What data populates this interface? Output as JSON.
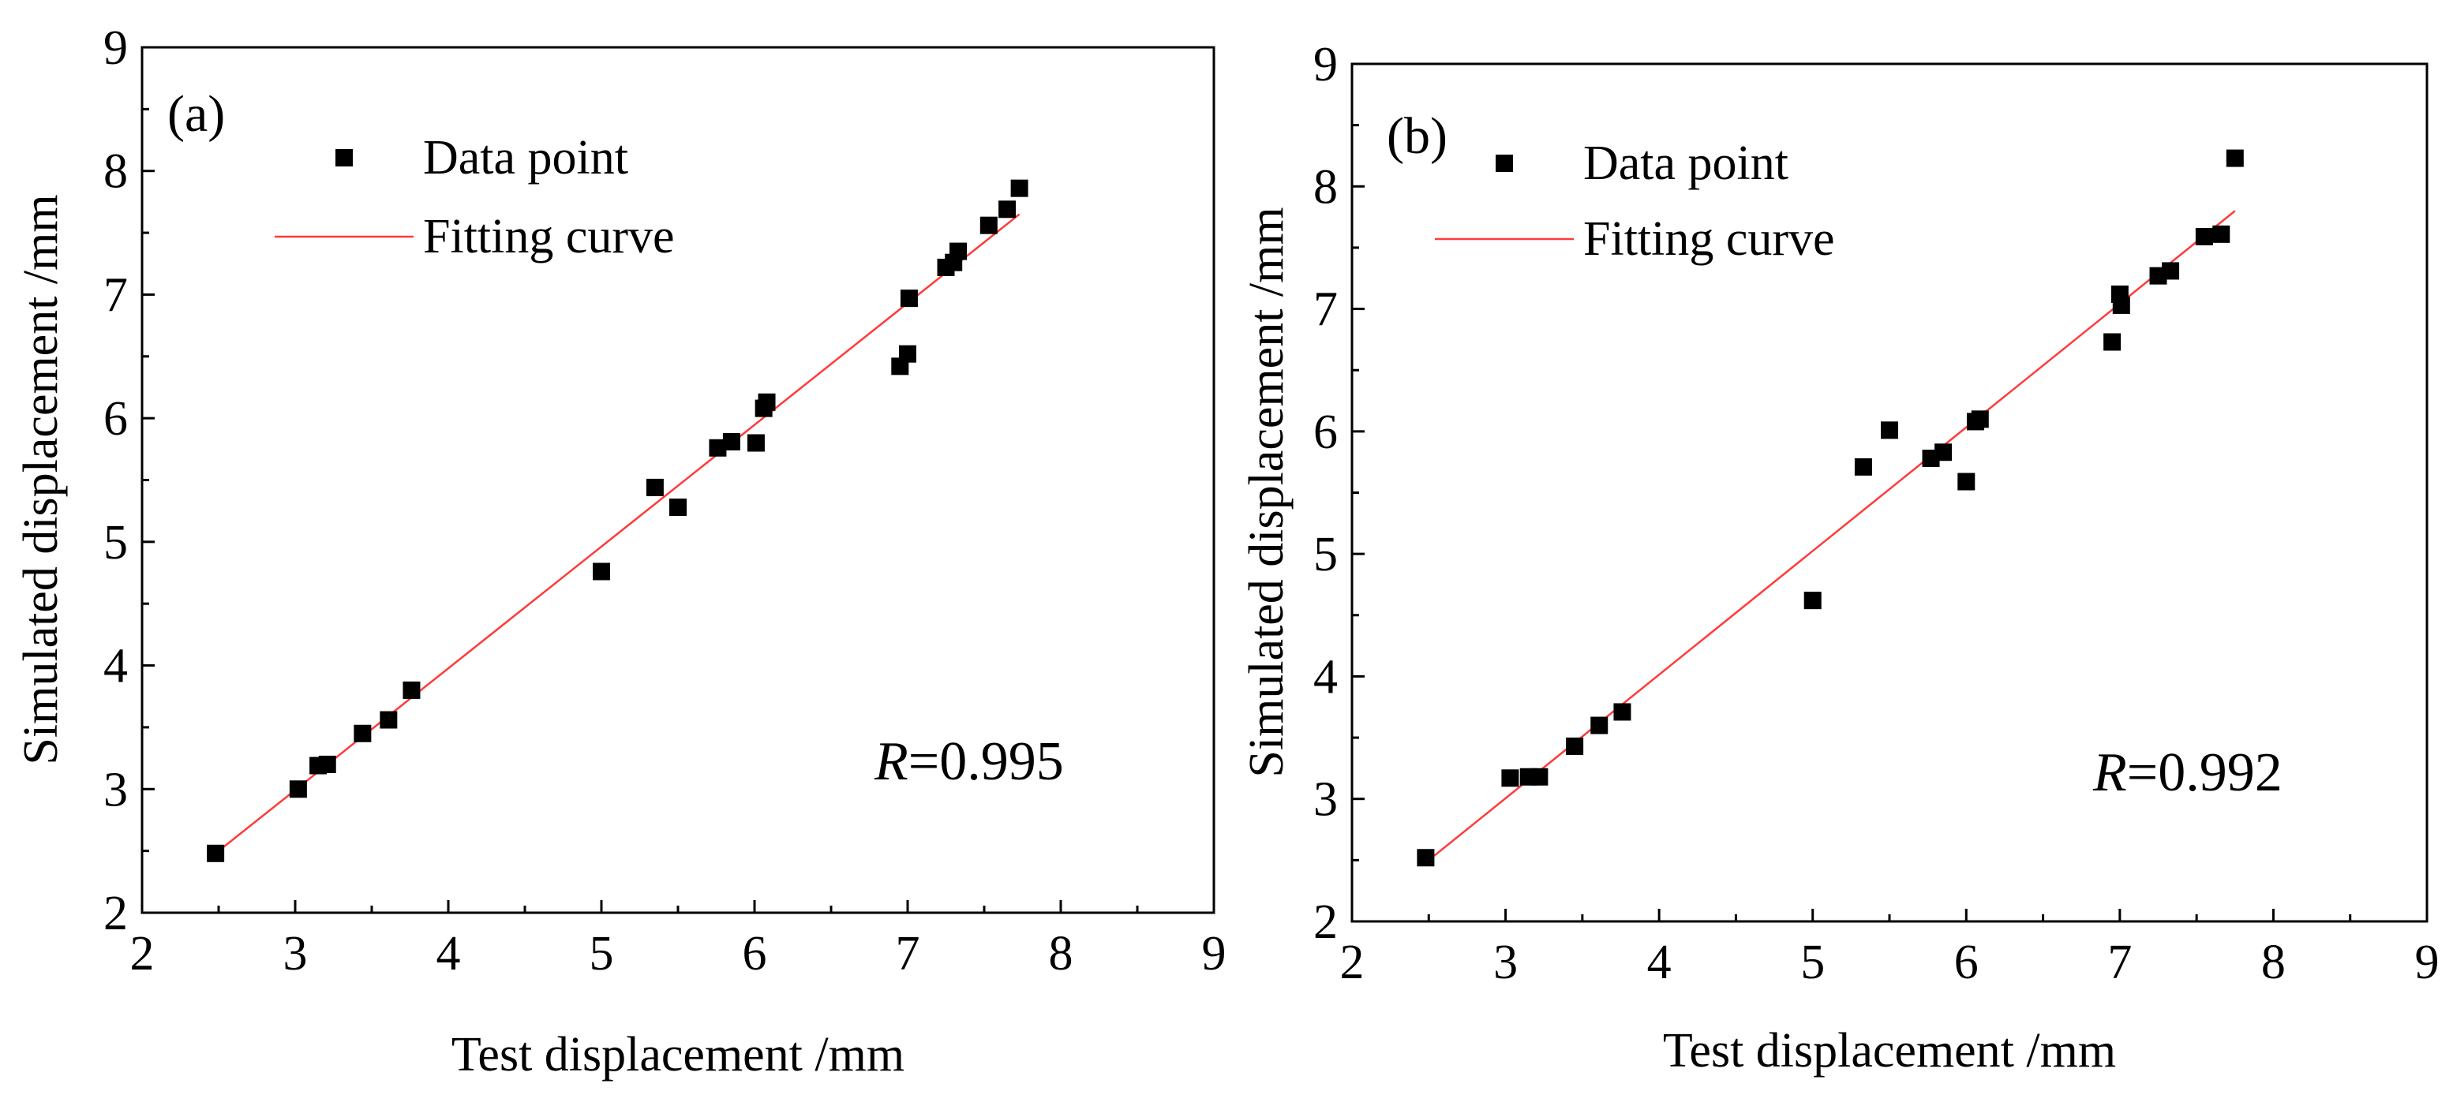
{
  "chart_data": [
    {
      "type": "scatter",
      "panel_label": "(a)",
      "xlabel": "Test displacement /mm",
      "ylabel": "Simulated displacement /mm",
      "xlim": [
        2,
        9
      ],
      "ylim": [
        2,
        9
      ],
      "xticks": [
        "2",
        "3",
        "4",
        "5",
        "6",
        "7",
        "8",
        "9"
      ],
      "yticks": [
        "2",
        "3",
        "4",
        "5",
        "6",
        "7",
        "8",
        "9"
      ],
      "legend": {
        "position": "top-left",
        "entries": [
          {
            "label": "Data point",
            "kind": "marker"
          },
          {
            "label": "Fitting curve",
            "kind": "line"
          }
        ]
      },
      "annotation": {
        "var": "R",
        "value": "=0.995"
      },
      "colors": {
        "points": "#000000",
        "fit": "#ff3a3a"
      },
      "series": [
        {
          "name": "Data point",
          "x": [
            2.48,
            3.02,
            3.15,
            3.21,
            3.44,
            3.61,
            3.76,
            5.0,
            5.35,
            5.5,
            5.76,
            5.85,
            6.01,
            6.06,
            6.08,
            6.95,
            7.0,
            7.01,
            7.25,
            7.3,
            7.33,
            7.53,
            7.65,
            7.73
          ],
          "y": [
            2.48,
            3.0,
            3.19,
            3.2,
            3.45,
            3.56,
            3.8,
            4.76,
            5.44,
            5.28,
            5.76,
            5.81,
            5.8,
            6.08,
            6.13,
            6.42,
            6.52,
            6.97,
            7.22,
            7.26,
            7.35,
            7.56,
            7.69,
            7.86
          ]
        },
        {
          "name": "Fitting curve",
          "x": [
            2.48,
            7.73
          ],
          "y": [
            2.48,
            7.65
          ]
        }
      ]
    },
    {
      "type": "scatter",
      "panel_label": "(b)",
      "xlabel": "Test displacement /mm",
      "ylabel": "Simulated displacement /mm",
      "xlim": [
        2,
        9
      ],
      "ylim": [
        2,
        9
      ],
      "xticks": [
        "2",
        "3",
        "4",
        "5",
        "6",
        "7",
        "8",
        "9"
      ],
      "yticks": [
        "2",
        "3",
        "4",
        "5",
        "6",
        "7",
        "8",
        "9"
      ],
      "legend": {
        "position": "top-left",
        "entries": [
          {
            "label": "Data point",
            "kind": "marker"
          },
          {
            "label": "Fitting curve",
            "kind": "line"
          }
        ]
      },
      "annotation": {
        "var": "R",
        "value": "=0.992"
      },
      "colors": {
        "points": "#000000",
        "fit": "#ff3a3a"
      },
      "series": [
        {
          "name": "Data point",
          "x": [
            2.48,
            3.03,
            3.15,
            3.22,
            3.45,
            3.61,
            3.76,
            5.0,
            5.33,
            5.5,
            5.77,
            5.85,
            6.0,
            6.06,
            6.09,
            6.95,
            7.0,
            7.01,
            7.25,
            7.33,
            7.55,
            7.66,
            7.75
          ],
          "y": [
            2.52,
            3.17,
            3.18,
            3.18,
            3.43,
            3.6,
            3.71,
            4.62,
            5.71,
            6.01,
            5.78,
            5.83,
            5.59,
            6.08,
            6.1,
            6.73,
            7.12,
            7.03,
            7.27,
            7.31,
            7.59,
            7.61,
            8.23
          ]
        },
        {
          "name": "Fitting curve",
          "x": [
            2.48,
            7.75
          ],
          "y": [
            2.48,
            7.8
          ]
        }
      ]
    }
  ]
}
